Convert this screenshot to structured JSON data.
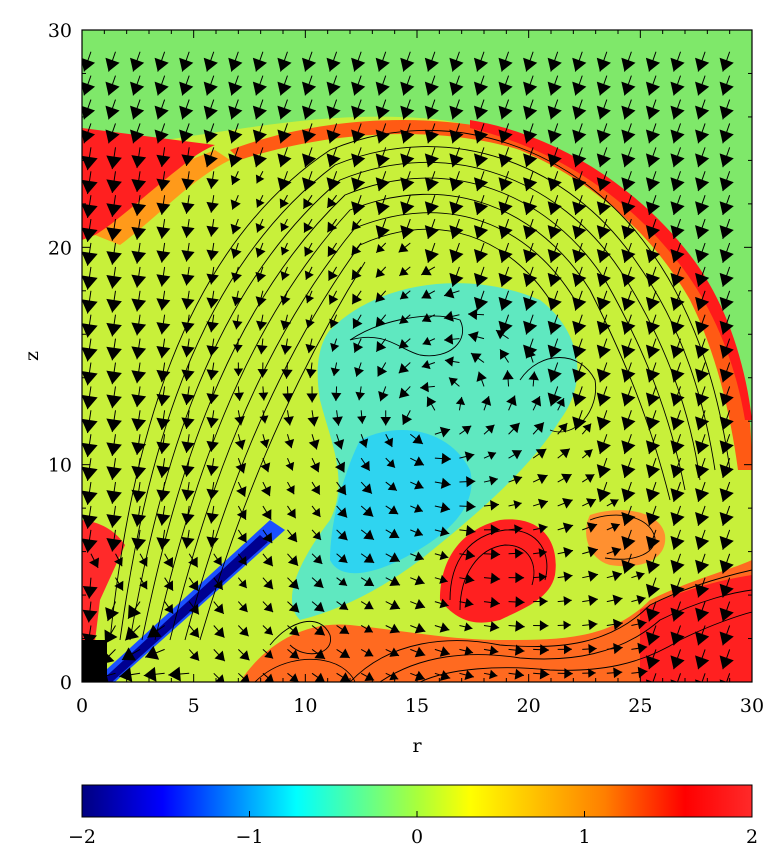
{
  "chart_data": {
    "type": "heatmap",
    "title": "",
    "xlabel": "r",
    "ylabel": "z",
    "xlim": [
      0,
      30
    ],
    "ylim": [
      0,
      30
    ],
    "xticks": [
      0,
      5,
      10,
      15,
      20,
      25,
      30
    ],
    "yticks": [
      0,
      10,
      20,
      30
    ],
    "xtick_labels": [
      "0",
      "5",
      "10",
      "15",
      "20",
      "25",
      "30"
    ],
    "ytick_labels": [
      "0",
      "10",
      "20",
      "30"
    ],
    "colorbar": {
      "range": [
        -2,
        2
      ],
      "ticks": [
        -2,
        -1,
        0,
        1,
        2
      ],
      "tick_labels": [
        "−2",
        "−1",
        "0",
        "1",
        "2"
      ],
      "colormap": [
        "#000080",
        "#0000ff",
        "#00ffff",
        "#7fff7f",
        "#ffff00",
        "#ff7f00",
        "#ff0000",
        "#ff2a2a"
      ]
    },
    "overlays": [
      "contour lines",
      "velocity vectors"
    ],
    "legend": "none",
    "grid": false
  }
}
